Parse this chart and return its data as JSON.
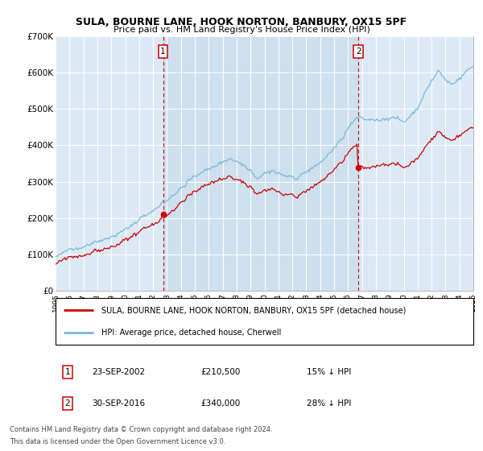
{
  "title": "SULA, BOURNE LANE, HOOK NORTON, BANBURY, OX15 5PF",
  "subtitle": "Price paid vs. HM Land Registry's House Price Index (HPI)",
  "legend_line1": "SULA, BOURNE LANE, HOOK NORTON, BANBURY, OX15 5PF (detached house)",
  "legend_line2": "HPI: Average price, detached house, Cherwell",
  "annotation1_date": "23-SEP-2002",
  "annotation1_price": "£210,500",
  "annotation1_hpi": "15% ↓ HPI",
  "annotation2_date": "30-SEP-2016",
  "annotation2_price": "£340,000",
  "annotation2_hpi": "28% ↓ HPI",
  "footnote1": "Contains HM Land Registry data © Crown copyright and database right 2024.",
  "footnote2": "This data is licensed under the Open Government Licence v3.0.",
  "sale1_year": 2002.72,
  "sale1_price": 210500,
  "sale2_year": 2016.75,
  "sale2_price": 340000,
  "hpi_color": "#7ab8d9",
  "hpi_fill_color": "#c8dff0",
  "price_color": "#cc0000",
  "background_color": "#dce9f5",
  "between_fill_color": "#c5daea",
  "plot_bg_color": "#ffffff",
  "ylim_min": 0,
  "ylim_max": 700000,
  "xlim_min": 1995,
  "xlim_max": 2025,
  "yticks": [
    0,
    100000,
    200000,
    300000,
    400000,
    500000,
    600000,
    700000
  ],
  "ytick_labels": [
    "£0",
    "£100K",
    "£200K",
    "£300K",
    "£400K",
    "£500K",
    "£600K",
    "£700K"
  ],
  "xticks": [
    1995,
    1996,
    1997,
    1998,
    1999,
    2000,
    2001,
    2002,
    2003,
    2004,
    2005,
    2006,
    2007,
    2008,
    2009,
    2010,
    2011,
    2012,
    2013,
    2014,
    2015,
    2016,
    2017,
    2018,
    2019,
    2020,
    2021,
    2022,
    2023,
    2024,
    2025
  ]
}
